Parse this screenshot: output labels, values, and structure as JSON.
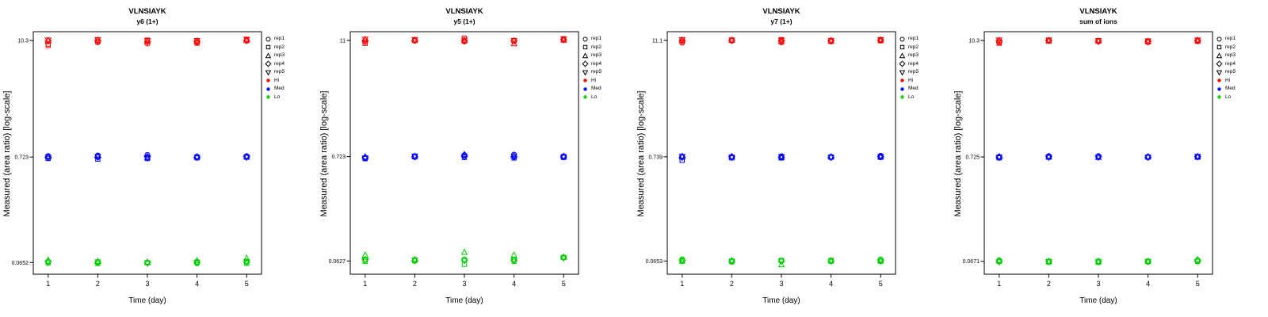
{
  "page": {
    "background": "#ffffff"
  },
  "colors": {
    "hi": "#FF0000",
    "med": "#0000FF",
    "lo": "#00CD00",
    "axis": "#000000"
  },
  "legend": {
    "reps": [
      {
        "label": "rep1",
        "shape": "circle"
      },
      {
        "label": "rep2",
        "shape": "square"
      },
      {
        "label": "rep3",
        "shape": "triangle-up"
      },
      {
        "label": "rep4",
        "shape": "diamond"
      },
      {
        "label": "rep5",
        "shape": "triangle-down"
      }
    ],
    "levels": [
      {
        "label": "Hi",
        "color": "#FF0000"
      },
      {
        "label": "Med",
        "color": "#0000FF"
      },
      {
        "label": "Lo",
        "color": "#00CD00"
      }
    ]
  },
  "chart_data": [
    {
      "type": "scatter",
      "title": "VLNSIAYK",
      "subtitle": "y6 (1+)",
      "xlabel": "Time (day)",
      "ylabel": "Measured (area ratio) [log-scale]",
      "x": [
        1,
        2,
        3,
        4,
        5
      ],
      "x_tick_labels": [
        "1",
        "2",
        "3",
        "4",
        "5"
      ],
      "xlim": [
        0.7,
        5.3
      ],
      "y_scale": "log",
      "y_ticks": [
        10.3,
        0.723,
        0.0652
      ],
      "y_tick_labels": [
        "10.3",
        "0.723",
        "0.0652"
      ],
      "ylim": [
        0.05,
        12.6
      ],
      "series": [
        {
          "name": "Hi",
          "color": "#FF0000",
          "values": [
            [
              9.5,
              9.9,
              9.6,
              9.9,
              10.2
            ],
            [
              9.2,
              10.0,
              10.4,
              9.7,
              10.5
            ],
            [
              10.3,
              10.4,
              10.1,
              10.2,
              10.4
            ],
            [
              10.2,
              10.3,
              10.0,
              10.1,
              10.3
            ],
            [
              10.4,
              10.5,
              10.3,
              10.3,
              10.6
            ]
          ]
        },
        {
          "name": "Med",
          "color": "#0000FF",
          "values": [
            [
              0.74,
              0.75,
              0.76,
              0.73,
              0.74
            ],
            [
              0.7,
              0.69,
              0.7,
              0.71,
              0.72
            ],
            [
              0.73,
              0.74,
              0.72,
              0.73,
              0.73
            ],
            [
              0.72,
              0.72,
              0.73,
              0.72,
              0.73
            ],
            [
              0.72,
              0.73,
              0.71,
              0.72,
              0.72
            ]
          ]
        },
        {
          "name": "Lo",
          "color": "#00CD00",
          "values": [
            [
              0.067,
              0.066,
              0.065,
              0.064,
              0.067
            ],
            [
              0.065,
              0.064,
              0.065,
              0.066,
              0.064
            ],
            [
              0.069,
              0.067,
              0.066,
              0.068,
              0.072
            ],
            [
              0.066,
              0.065,
              0.065,
              0.065,
              0.066
            ],
            [
              0.065,
              0.066,
              0.064,
              0.065,
              0.066
            ]
          ]
        }
      ]
    },
    {
      "type": "scatter",
      "title": "VLNSIAYK",
      "subtitle": "y5 (1+)",
      "xlabel": "Time (day)",
      "ylabel": "Measured (area ratio) [log-scale]",
      "x": [
        1,
        2,
        3,
        4,
        5
      ],
      "x_tick_labels": [
        "1",
        "2",
        "3",
        "4",
        "5"
      ],
      "xlim": [
        0.7,
        5.3
      ],
      "y_scale": "log",
      "y_ticks": [
        11,
        0.723,
        0.0627
      ],
      "y_tick_labels": [
        "11",
        "0.723",
        "0.0627"
      ],
      "ylim": [
        0.046,
        13.5
      ],
      "series": [
        {
          "name": "Hi",
          "color": "#FF0000",
          "values": [
            [
              10.6,
              10.9,
              10.7,
              10.8,
              11.2
            ],
            [
              10.3,
              11.0,
              11.6,
              10.9,
              11.3
            ],
            [
              11.2,
              11.1,
              11.0,
              10.2,
              11.1
            ],
            [
              11.0,
              11.0,
              10.9,
              10.9,
              11.2
            ],
            [
              11.3,
              11.2,
              11.1,
              11.0,
              11.4
            ]
          ]
        },
        {
          "name": "Med",
          "color": "#0000FF",
          "values": [
            [
              0.7,
              0.73,
              0.75,
              0.76,
              0.73
            ],
            [
              0.69,
              0.72,
              0.71,
              0.7,
              0.71
            ],
            [
              0.72,
              0.73,
              0.76,
              0.74,
              0.73
            ],
            [
              0.71,
              0.72,
              0.73,
              0.72,
              0.72
            ],
            [
              0.7,
              0.73,
              0.72,
              0.73,
              0.72
            ]
          ]
        },
        {
          "name": "Lo",
          "color": "#00CD00",
          "values": [
            [
              0.064,
              0.064,
              0.065,
              0.065,
              0.068
            ],
            [
              0.062,
              0.063,
              0.058,
              0.062,
              0.068
            ],
            [
              0.072,
              0.065,
              0.077,
              0.072,
              0.069
            ],
            [
              0.065,
              0.063,
              0.064,
              0.064,
              0.068
            ],
            [
              0.064,
              0.064,
              0.063,
              0.064,
              0.067
            ]
          ]
        }
      ]
    },
    {
      "type": "scatter",
      "title": "VLNSIAYK",
      "subtitle": "y7 (1+)",
      "xlabel": "Time (day)",
      "ylabel": "Measured (area ratio) [log-scale]",
      "x": [
        1,
        2,
        3,
        4,
        5
      ],
      "x_tick_labels": [
        "1",
        "2",
        "3",
        "4",
        "5"
      ],
      "xlim": [
        0.7,
        5.3
      ],
      "y_scale": "log",
      "y_ticks": [
        11.1,
        0.739,
        0.0653
      ],
      "y_tick_labels": [
        "11.1",
        "0.739",
        "0.0653"
      ],
      "ylim": [
        0.048,
        13.6
      ],
      "series": [
        {
          "name": "Hi",
          "color": "#FF0000",
          "values": [
            [
              10.5,
              11.0,
              10.6,
              10.8,
              11.0
            ],
            [
              10.8,
              11.1,
              11.3,
              10.9,
              11.2
            ],
            [
              11.2,
              11.2,
              10.8,
              11.0,
              11.1
            ],
            [
              11.1,
              11.1,
              11.0,
              11.0,
              11.2
            ],
            [
              11.3,
              11.2,
              11.1,
              11.1,
              11.3
            ]
          ]
        },
        {
          "name": "Med",
          "color": "#0000FF",
          "values": [
            [
              0.75,
              0.74,
              0.75,
              0.74,
              0.76
            ],
            [
              0.68,
              0.72,
              0.72,
              0.73,
              0.73
            ],
            [
              0.74,
              0.74,
              0.73,
              0.74,
              0.74
            ],
            [
              0.73,
              0.74,
              0.73,
              0.73,
              0.74
            ],
            [
              0.74,
              0.73,
              0.74,
              0.73,
              0.74
            ]
          ]
        },
        {
          "name": "Lo",
          "color": "#00CD00",
          "values": [
            [
              0.068,
              0.065,
              0.066,
              0.065,
              0.068
            ],
            [
              0.066,
              0.064,
              0.066,
              0.065,
              0.065
            ],
            [
              0.065,
              0.066,
              0.06,
              0.066,
              0.066
            ],
            [
              0.066,
              0.065,
              0.065,
              0.065,
              0.066
            ],
            [
              0.065,
              0.065,
              0.065,
              0.066,
              0.065
            ]
          ]
        }
      ]
    },
    {
      "type": "scatter",
      "title": "VLNSIAYK",
      "subtitle": "sum of ions",
      "xlabel": "Time (day)",
      "ylabel": "Measured (area ratio) [log-scale]",
      "x": [
        1,
        2,
        3,
        4,
        5
      ],
      "x_tick_labels": [
        "1",
        "2",
        "3",
        "4",
        "5"
      ],
      "xlim": [
        0.7,
        5.3
      ],
      "y_scale": "log",
      "y_ticks": [
        10.3,
        0.725,
        0.0671
      ],
      "y_tick_labels": [
        "10.3",
        "0.725",
        "0.0671"
      ],
      "ylim": [
        0.05,
        12.6
      ],
      "series": [
        {
          "name": "Hi",
          "color": "#FF0000",
          "values": [
            [
              9.9,
              10.2,
              10.1,
              9.9,
              10.1
            ],
            [
              9.7,
              10.2,
              10.3,
              10.0,
              10.2
            ],
            [
              10.3,
              10.3,
              10.2,
              10.1,
              10.3
            ],
            [
              10.2,
              10.3,
              10.1,
              10.1,
              10.3
            ],
            [
              10.4,
              10.4,
              10.3,
              10.2,
              10.4
            ]
          ]
        },
        {
          "name": "Med",
          "color": "#0000FF",
          "values": [
            [
              0.73,
              0.74,
              0.74,
              0.73,
              0.73
            ],
            [
              0.71,
              0.72,
              0.72,
              0.72,
              0.72
            ],
            [
              0.73,
              0.73,
              0.72,
              0.73,
              0.73
            ],
            [
              0.72,
              0.73,
              0.73,
              0.72,
              0.73
            ],
            [
              0.72,
              0.72,
              0.72,
              0.72,
              0.73
            ]
          ]
        },
        {
          "name": "Lo",
          "color": "#00CD00",
          "values": [
            [
              0.069,
              0.067,
              0.067,
              0.066,
              0.069
            ],
            [
              0.067,
              0.066,
              0.067,
              0.067,
              0.067
            ],
            [
              0.068,
              0.067,
              0.066,
              0.067,
              0.07
            ],
            [
              0.067,
              0.067,
              0.067,
              0.067,
              0.068
            ],
            [
              0.066,
              0.067,
              0.066,
              0.067,
              0.067
            ]
          ]
        }
      ]
    }
  ]
}
